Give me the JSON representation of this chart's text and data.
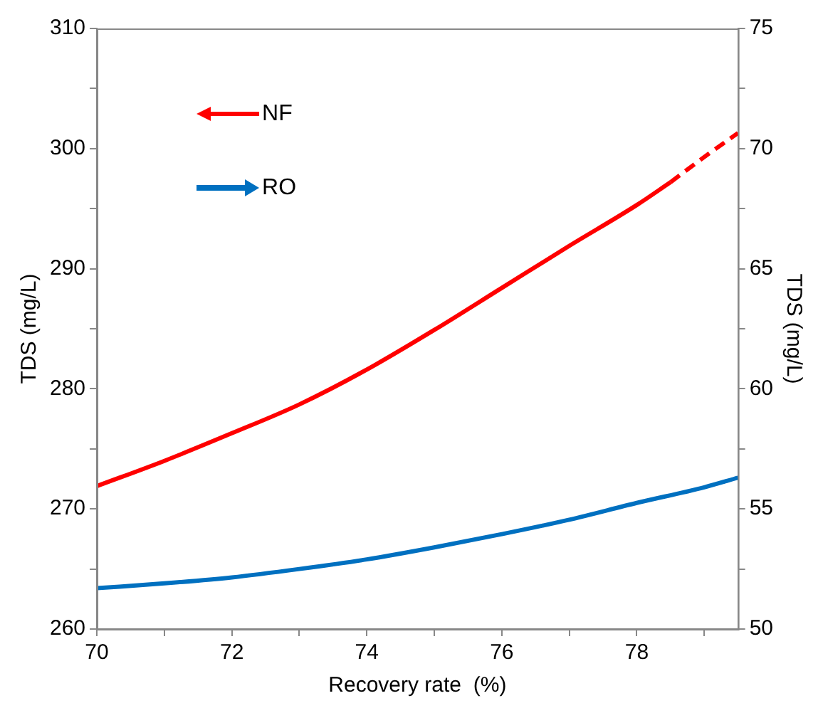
{
  "chart_data": {
    "type": "line",
    "xlabel": "Recovery rate  (%)",
    "ylabel": "TDS (mg/L)",
    "y2label": "TDS (mg/L)",
    "xlim": [
      70,
      79.5
    ],
    "xticks": [
      70,
      {
        "value": 71,
        "label": null
      },
      72,
      {
        "value": 73,
        "label": null
      },
      74,
      {
        "value": 75,
        "label": null
      },
      76,
      {
        "value": 77,
        "label": null
      },
      78,
      {
        "value": 79,
        "label": null
      }
    ],
    "ylim": [
      260,
      310
    ],
    "yticks": [
      260,
      {
        "value": 265,
        "label": null
      },
      270,
      {
        "value": 275,
        "label": null
      },
      280,
      {
        "value": 285,
        "label": null
      },
      290,
      {
        "value": 295,
        "label": null
      },
      300,
      {
        "value": 305,
        "label": null
      },
      310
    ],
    "y2lim": [
      50,
      75
    ],
    "y2ticks": [
      50,
      {
        "value": 52.5,
        "label": null
      },
      55,
      {
        "value": 57.5,
        "label": null
      },
      60,
      {
        "value": 62.5,
        "label": null
      },
      65,
      {
        "value": 67.5,
        "label": null
      },
      70,
      {
        "value": 72.5,
        "label": null
      },
      75
    ],
    "grid": false,
    "legend": "top left",
    "marker": "none",
    "series": [
      {
        "name": "NF",
        "color": "#ff0000",
        "line_style": "solid",
        "x": [
          70,
          71,
          72,
          73,
          74,
          75,
          76,
          77,
          78,
          78.5
        ],
        "values": [
          271.9,
          274.0,
          276.3,
          278.7,
          281.6,
          284.9,
          288.4,
          291.9,
          295.3,
          297.2
        ]
      },
      {
        "color": "#ff0000",
        "line_style": "dashed",
        "x": [
          78.5,
          79,
          79.5
        ],
        "values": [
          297.2,
          299.3,
          301.3
        ]
      },
      {
        "name": "RO",
        "color": "#0070c0",
        "axis": "y2",
        "line_style": "solid",
        "x": [
          70,
          71,
          72,
          73,
          74,
          75,
          76,
          77,
          78,
          79,
          79.5
        ],
        "values": [
          51.7,
          51.9,
          52.15,
          52.5,
          52.9,
          53.4,
          53.95,
          54.55,
          55.25,
          55.9,
          56.3
        ]
      }
    ]
  }
}
